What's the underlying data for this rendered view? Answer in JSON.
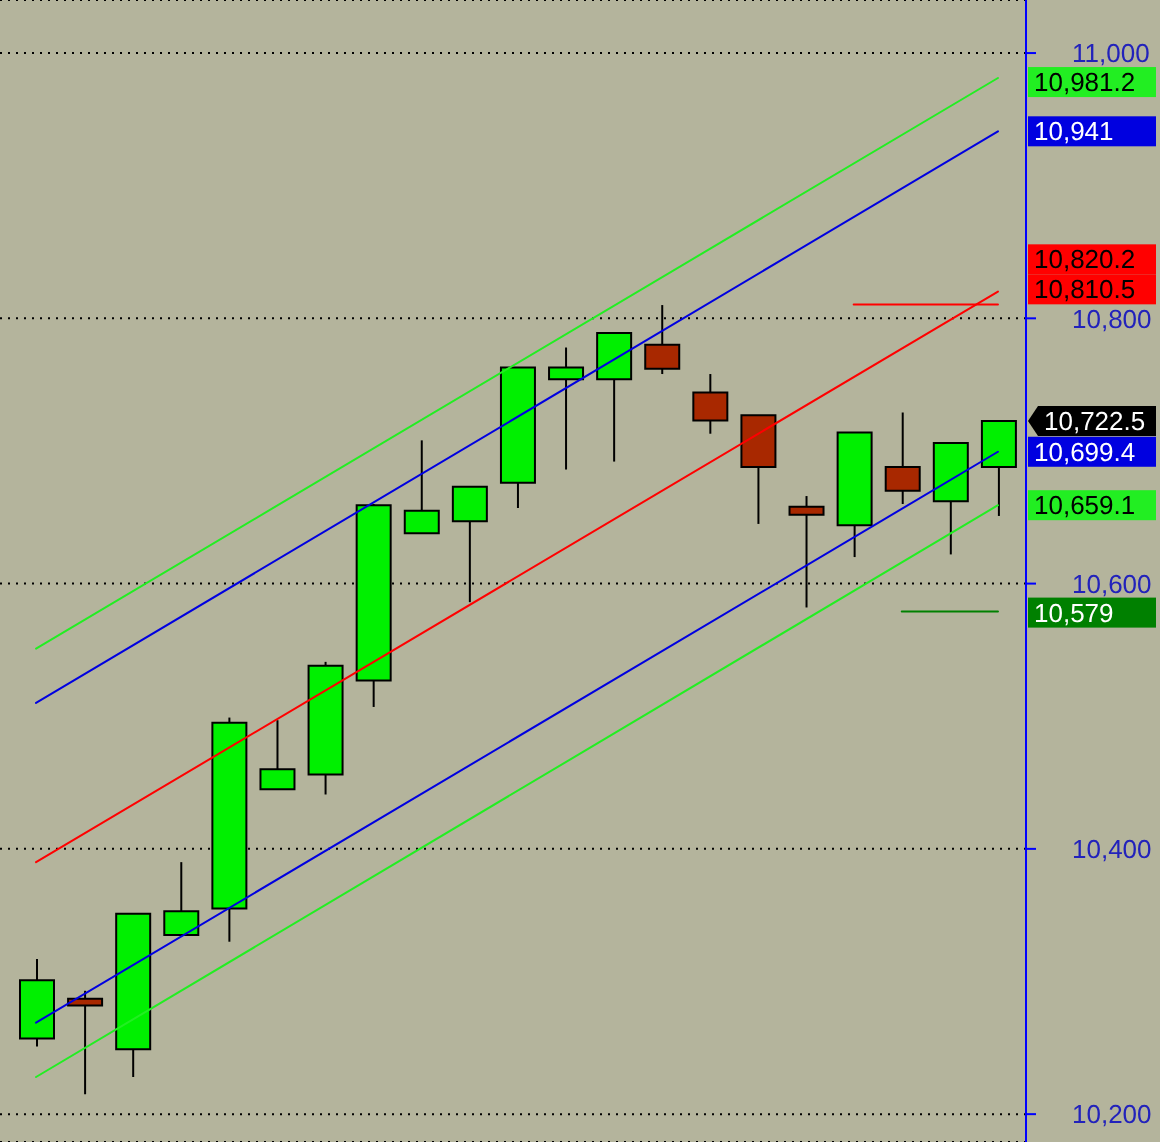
{
  "chart_data": {
    "type": "candlestick",
    "categories": [
      null,
      null,
      null,
      null,
      null,
      null,
      null,
      null,
      null,
      null,
      null,
      null,
      null,
      null,
      null,
      null,
      null,
      null,
      null,
      null,
      null
    ],
    "ohlc": [
      [
        10257,
        10317,
        10251,
        10301
      ],
      [
        10287,
        10293,
        10215,
        10282
      ],
      [
        10249,
        10351,
        10228,
        10351
      ],
      [
        10335,
        10390,
        10335,
        10353
      ],
      [
        10355,
        10499,
        10330,
        10495
      ],
      [
        10445,
        10497,
        10445,
        10460
      ],
      [
        10456,
        10541,
        10441,
        10538
      ],
      [
        10527,
        10660,
        10507,
        10659
      ],
      [
        10638,
        10708,
        10638,
        10655
      ],
      [
        10647,
        10673,
        10586,
        10673
      ],
      [
        10676,
        10763,
        10657,
        10763
      ],
      [
        10754,
        10778,
        10686,
        10763
      ],
      [
        10754,
        10789,
        10692,
        10789
      ],
      [
        10780,
        10810,
        10758,
        10762
      ],
      [
        10744,
        10758,
        10713,
        10723
      ],
      [
        10727,
        10727,
        10645,
        10688
      ],
      [
        10658,
        10666,
        10582,
        10652
      ],
      [
        10644,
        10714,
        10620,
        10714
      ],
      [
        10688,
        10729,
        10660,
        10670
      ],
      [
        10662,
        10706,
        10622,
        10706
      ],
      [
        10688,
        10722.5,
        10651,
        10722.5
      ]
    ],
    "colors": [
      "#00f000",
      "#a82800",
      "#00f000",
      "#00f000",
      "#00f000",
      "#00f000",
      "#00f000",
      "#00f000",
      "#00f000",
      "#00f000",
      "#00f000",
      "#00f000",
      "#00f000",
      "#a82800",
      "#a82800",
      "#a82800",
      "#a82800",
      "#00f000",
      "#a82800",
      "#00f000",
      "#00f000"
    ],
    "value_labels": [
      null,
      null,
      null,
      null,
      null,
      null,
      null,
      null,
      null,
      null,
      null,
      null,
      null,
      null,
      null,
      null,
      null,
      null,
      null,
      null,
      "10,722.5"
    ],
    "series": [
      {
        "type": "line",
        "values": [
          10551,
          null,
          null,
          null,
          null,
          null,
          null,
          null,
          null,
          null,
          null,
          null,
          null,
          null,
          null,
          null,
          null,
          null,
          null,
          null,
          10981.2
        ],
        "color": "#22ee22",
        "value_labels": [
          null,
          null,
          null,
          null,
          null,
          null,
          null,
          null,
          null,
          null,
          null,
          null,
          null,
          null,
          null,
          null,
          null,
          null,
          null,
          null,
          "10,981.2"
        ]
      },
      {
        "type": "line",
        "values": [
          10510,
          null,
          null,
          null,
          null,
          null,
          null,
          null,
          null,
          null,
          null,
          null,
          null,
          null,
          null,
          null,
          null,
          null,
          null,
          null,
          10941
        ],
        "color": "#0000e0",
        "value_labels": [
          null,
          null,
          null,
          null,
          null,
          null,
          null,
          null,
          null,
          null,
          null,
          null,
          null,
          null,
          null,
          null,
          null,
          null,
          null,
          null,
          "10,941"
        ]
      },
      {
        "type": "line",
        "values": [
          10390,
          null,
          null,
          null,
          null,
          null,
          null,
          null,
          null,
          null,
          null,
          null,
          null,
          null,
          null,
          null,
          null,
          null,
          null,
          null,
          10820.2
        ],
        "color": "#ff0000",
        "value_labels": [
          null,
          null,
          null,
          null,
          null,
          null,
          null,
          null,
          null,
          null,
          null,
          null,
          null,
          null,
          null,
          null,
          null,
          null,
          null,
          null,
          "10,820.2"
        ]
      },
      {
        "type": "line",
        "values": [
          10269,
          null,
          null,
          null,
          null,
          null,
          null,
          null,
          null,
          null,
          null,
          null,
          null,
          null,
          null,
          null,
          null,
          null,
          null,
          null,
          10699.4
        ],
        "color": "#0000e0",
        "value_labels": [
          null,
          null,
          null,
          null,
          null,
          null,
          null,
          null,
          null,
          null,
          null,
          null,
          null,
          null,
          null,
          null,
          null,
          null,
          null,
          null,
          "10,699.4"
        ]
      },
      {
        "type": "line",
        "values": [
          10228,
          null,
          null,
          null,
          null,
          null,
          null,
          null,
          null,
          null,
          null,
          null,
          null,
          null,
          null,
          null,
          null,
          null,
          null,
          null,
          10659.1
        ],
        "color": "#22ee22",
        "value_labels": [
          null,
          null,
          null,
          null,
          null,
          null,
          null,
          null,
          null,
          null,
          null,
          null,
          null,
          null,
          null,
          null,
          null,
          null,
          null,
          null,
          "10,659.1"
        ]
      },
      {
        "type": "line",
        "values": [
          null,
          null,
          null,
          null,
          null,
          null,
          null,
          null,
          null,
          null,
          null,
          null,
          null,
          null,
          null,
          null,
          null,
          10810.5,
          10810.5,
          10810.5,
          10810.5
        ],
        "color": "#ff0000",
        "value_labels": [
          null,
          null,
          null,
          null,
          null,
          null,
          null,
          null,
          null,
          null,
          null,
          null,
          null,
          null,
          null,
          null,
          null,
          null,
          null,
          null,
          "10,810.5"
        ]
      },
      {
        "type": "line",
        "values": [
          null,
          null,
          null,
          null,
          null,
          null,
          null,
          null,
          null,
          null,
          null,
          null,
          null,
          null,
          null,
          null,
          null,
          null,
          10579,
          10579,
          10579
        ],
        "color": "#008000",
        "value_labels": [
          null,
          null,
          null,
          null,
          null,
          null,
          null,
          null,
          null,
          null,
          null,
          null,
          null,
          null,
          null,
          null,
          null,
          null,
          null,
          null,
          "10,579"
        ]
      }
    ],
    "ylim": [
      10179,
      11040
    ],
    "yticks": [
      {
        "value": 10200,
        "label": "10,200"
      },
      {
        "value": 10400,
        "label": "10,400"
      },
      {
        "value": 10600,
        "label": "10,600"
      },
      {
        "value": 10800,
        "label": "10,800"
      },
      {
        "value": 11000,
        "label": "11,000"
      }
    ],
    "grid": "y",
    "tick_labels": "y"
  }
}
